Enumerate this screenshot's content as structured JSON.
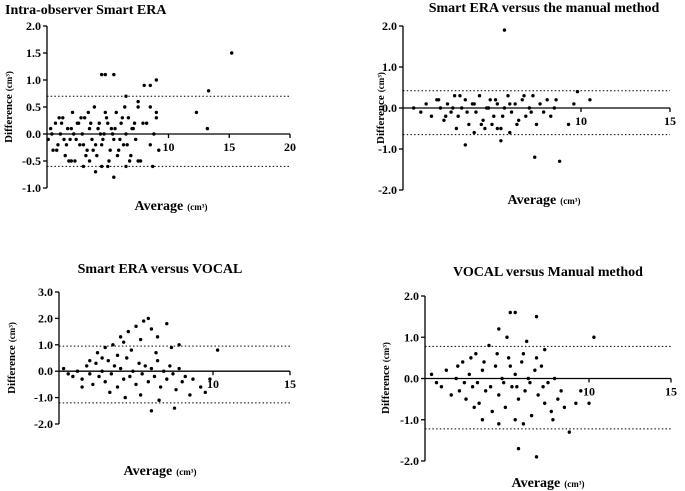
{
  "chart_data": [
    {
      "type": "scatter",
      "title": "Intra-observer  Smart ERA",
      "xlabel": "Average",
      "xlabel_unit": "(cm³)",
      "ylabel": "Difference",
      "ylabel_unit": "(cm³)",
      "xlim": [
        0,
        20
      ],
      "ylim": [
        -1.0,
        2.0
      ],
      "xticks": [
        {
          "v": 10,
          "t": "10"
        },
        {
          "v": 15,
          "t": "15"
        },
        {
          "v": 20,
          "t": "20"
        }
      ],
      "yticks": [
        {
          "v": 2.0,
          "t": "2.0"
        },
        {
          "v": 1.5,
          "t": "1.5"
        },
        {
          "v": 1.0,
          "t": "1.0"
        },
        {
          "v": 0.5,
          "t": "0.5"
        },
        {
          "v": 0.0,
          "t": "0.0"
        },
        {
          "v": -0.5,
          "t": "-0.5"
        },
        {
          "v": -1.0,
          "t": "-1.0"
        }
      ],
      "limits": [
        0.7,
        -0.6
      ],
      "points": [
        [
          0.1,
          -0.1
        ],
        [
          0.3,
          0.1
        ],
        [
          0.5,
          -0.3
        ],
        [
          0.7,
          0.2
        ],
        [
          0.9,
          -0.2
        ],
        [
          1.1,
          0.0
        ],
        [
          1.3,
          0.3
        ],
        [
          1.5,
          -0.4
        ],
        [
          1.7,
          0.1
        ],
        [
          1.9,
          -0.1
        ],
        [
          2.1,
          0.4
        ],
        [
          2.3,
          -0.5
        ],
        [
          2.5,
          0.2
        ],
        [
          2.7,
          -0.2
        ],
        [
          2.9,
          0.0
        ],
        [
          3.1,
          0.3
        ],
        [
          3.3,
          -0.3
        ],
        [
          3.5,
          0.1
        ],
        [
          3.7,
          -0.1
        ],
        [
          3.9,
          0.5
        ],
        [
          4.1,
          -0.4
        ],
        [
          4.3,
          0.2
        ],
        [
          4.5,
          -0.2
        ],
        [
          4.7,
          0.0
        ],
        [
          4.9,
          0.3
        ],
        [
          5.1,
          -0.5
        ],
        [
          5.3,
          0.1
        ],
        [
          5.5,
          -0.1
        ],
        [
          5.7,
          0.4
        ],
        [
          5.9,
          -0.3
        ],
        [
          6.1,
          0.2
        ],
        [
          6.3,
          -0.2
        ],
        [
          6.5,
          0.0
        ],
        [
          6.7,
          0.3
        ],
        [
          6.9,
          -0.4
        ],
        [
          7.1,
          0.1
        ],
        [
          7.3,
          -0.1
        ],
        [
          7.5,
          0.5
        ],
        [
          7.7,
          -0.5
        ],
        [
          7.9,
          0.2
        ],
        [
          0.4,
          0.0
        ],
        [
          0.8,
          -0.3
        ],
        [
          1.2,
          0.2
        ],
        [
          1.6,
          -0.2
        ],
        [
          2.0,
          0.1
        ],
        [
          2.4,
          -0.1
        ],
        [
          2.8,
          0.3
        ],
        [
          3.2,
          -0.4
        ],
        [
          3.6,
          0.2
        ],
        [
          4.0,
          -0.2
        ],
        [
          4.4,
          0.0
        ],
        [
          4.8,
          0.4
        ],
        [
          5.2,
          -0.3
        ],
        [
          5.6,
          0.1
        ],
        [
          6.0,
          -0.1
        ],
        [
          6.4,
          0.5
        ],
        [
          6.8,
          -0.5
        ],
        [
          7.2,
          0.2
        ],
        [
          1.0,
          0.3
        ],
        [
          1.4,
          -0.1
        ],
        [
          1.8,
          -0.5
        ],
        [
          2.2,
          0.0
        ],
        [
          2.6,
          0.2
        ],
        [
          3.0,
          -0.2
        ],
        [
          3.4,
          0.4
        ],
        [
          3.8,
          -0.3
        ],
        [
          4.2,
          0.1
        ],
        [
          4.6,
          -0.1
        ],
        [
          5.0,
          0.2
        ],
        [
          5.4,
          0.0
        ],
        [
          5.8,
          -0.4
        ],
        [
          6.2,
          0.3
        ],
        [
          6.6,
          -0.2
        ],
        [
          7.0,
          0.1
        ],
        [
          3.0,
          -0.6
        ],
        [
          4.0,
          -0.7
        ],
        [
          5.0,
          -0.6
        ],
        [
          5.5,
          -0.8
        ],
        [
          6.5,
          -0.6
        ],
        [
          7.5,
          -0.5
        ],
        [
          2.0,
          -0.5
        ],
        [
          3.5,
          -0.5
        ],
        [
          4.5,
          -0.6
        ],
        [
          4.5,
          1.1
        ],
        [
          4.8,
          1.1
        ],
        [
          5.5,
          1.1
        ],
        [
          6.5,
          0.7
        ],
        [
          7.5,
          0.6
        ],
        [
          8.0,
          0.9
        ],
        [
          8.5,
          0.9
        ],
        [
          9.0,
          1.0
        ],
        [
          8.5,
          0.5
        ],
        [
          9.0,
          0.3
        ],
        [
          8.2,
          0.2
        ],
        [
          8.8,
          0.0
        ],
        [
          8.5,
          -0.2
        ],
        [
          9.2,
          -0.3
        ],
        [
          8.7,
          -0.6
        ],
        [
          12.3,
          0.4
        ],
        [
          13.3,
          0.8
        ],
        [
          13.2,
          0.1
        ],
        [
          15.2,
          1.5
        ],
        [
          9.0,
          0.4
        ]
      ]
    },
    {
      "type": "scatter",
      "title": "Smart ERA versus the manual method",
      "xlabel": "Average",
      "xlabel_unit": "(cm³)",
      "ylabel": "Difference",
      "ylabel_unit": "(cm³)",
      "xlim": [
        0,
        15
      ],
      "ylim": [
        -2.0,
        2.0
      ],
      "xticks": [
        {
          "v": 10,
          "t": "10"
        },
        {
          "v": 15,
          "t": "15"
        }
      ],
      "yticks": [
        {
          "v": 2.0,
          "t": "2.0"
        },
        {
          "v": 1.0,
          "t": "1.0"
        },
        {
          "v": 0.0,
          "t": "0.0"
        },
        {
          "v": -1.0,
          "t": "-1.0"
        },
        {
          "v": -2.0,
          "t": "-2.0"
        }
      ],
      "limits": [
        0.42,
        -0.65
      ],
      "points": [
        [
          0.6,
          0.0
        ],
        [
          1.0,
          -0.1
        ],
        [
          1.3,
          0.1
        ],
        [
          1.6,
          -0.2
        ],
        [
          1.9,
          0.2
        ],
        [
          2.1,
          0.0
        ],
        [
          2.3,
          -0.3
        ],
        [
          2.5,
          0.1
        ],
        [
          2.7,
          -0.1
        ],
        [
          2.9,
          0.3
        ],
        [
          3.1,
          -0.2
        ],
        [
          3.3,
          0.0
        ],
        [
          3.5,
          0.2
        ],
        [
          3.7,
          -0.4
        ],
        [
          3.9,
          0.1
        ],
        [
          4.1,
          -0.1
        ],
        [
          4.3,
          0.3
        ],
        [
          4.5,
          -0.3
        ],
        [
          4.7,
          0.0
        ],
        [
          4.9,
          0.2
        ],
        [
          5.1,
          -0.2
        ],
        [
          5.3,
          0.1
        ],
        [
          5.5,
          -0.5
        ],
        [
          5.7,
          0.0
        ],
        [
          5.9,
          0.3
        ],
        [
          6.1,
          -0.1
        ],
        [
          6.3,
          0.1
        ],
        [
          6.5,
          -0.3
        ],
        [
          6.7,
          0.2
        ],
        [
          6.9,
          -0.2
        ],
        [
          7.1,
          0.0
        ],
        [
          7.3,
          0.3
        ],
        [
          7.5,
          -0.4
        ],
        [
          7.7,
          0.1
        ],
        [
          7.9,
          -0.1
        ],
        [
          8.1,
          0.2
        ],
        [
          8.3,
          -0.2
        ],
        [
          8.5,
          0.0
        ],
        [
          2.0,
          0.2
        ],
        [
          2.4,
          -0.2
        ],
        [
          2.8,
          0.0
        ],
        [
          3.2,
          0.3
        ],
        [
          3.6,
          -0.1
        ],
        [
          4.0,
          0.1
        ],
        [
          4.4,
          -0.4
        ],
        [
          4.8,
          0.0
        ],
        [
          5.2,
          0.2
        ],
        [
          5.6,
          -0.2
        ],
        [
          6.0,
          0.1
        ],
        [
          6.4,
          -0.4
        ],
        [
          6.8,
          0.3
        ],
        [
          7.2,
          -0.1
        ],
        [
          3.0,
          -0.5
        ],
        [
          4.0,
          -0.6
        ],
        [
          5.0,
          -0.4
        ],
        [
          6.0,
          -0.6
        ],
        [
          3.5,
          -0.9
        ],
        [
          5.5,
          -0.8
        ],
        [
          4.6,
          -0.5
        ],
        [
          5.3,
          -0.5
        ],
        [
          7.4,
          -1.2
        ],
        [
          8.8,
          -1.3
        ],
        [
          5.7,
          1.9
        ],
        [
          8.6,
          0.2
        ],
        [
          9.3,
          -0.4
        ],
        [
          9.6,
          0.1
        ],
        [
          9.8,
          0.4
        ],
        [
          10.5,
          0.2
        ]
      ]
    },
    {
      "type": "scatter",
      "title": "Smart ERA versus VOCAL",
      "xlabel": "Average",
      "xlabel_unit": "(cm³)",
      "ylabel": "Difference",
      "ylabel_unit": "(cm³)",
      "xlim": [
        0,
        15
      ],
      "ylim": [
        -2.0,
        3.0
      ],
      "xticks": [
        {
          "v": 10,
          "t": "10"
        },
        {
          "v": 15,
          "t": "15"
        }
      ],
      "yticks": [
        {
          "v": 3.0,
          "t": "3.0"
        },
        {
          "v": 2.0,
          "t": "2.0"
        },
        {
          "v": 1.0,
          "t": "1.0"
        },
        {
          "v": 0.0,
          "t": "0.0"
        },
        {
          "v": -1.0,
          "t": "-1.0"
        },
        {
          "v": -2.0,
          "t": "-2.0"
        }
      ],
      "limits": [
        0.95,
        -1.2
      ],
      "points": [
        [
          0.3,
          0.1
        ],
        [
          0.6,
          -0.1
        ],
        [
          0.9,
          -0.2
        ],
        [
          1.2,
          0.0
        ],
        [
          1.5,
          -0.3
        ],
        [
          1.8,
          0.2
        ],
        [
          2.0,
          -0.1
        ],
        [
          2.2,
          -0.5
        ],
        [
          2.4,
          0.3
        ],
        [
          2.6,
          -0.2
        ],
        [
          2.8,
          0.0
        ],
        [
          3.0,
          -0.4
        ],
        [
          3.2,
          0.4
        ],
        [
          3.4,
          -0.1
        ],
        [
          3.6,
          0.2
        ],
        [
          3.8,
          -0.6
        ],
        [
          4.0,
          0.1
        ],
        [
          4.2,
          -0.3
        ],
        [
          4.4,
          0.5
        ],
        [
          4.6,
          -0.2
        ],
        [
          4.8,
          0.0
        ],
        [
          5.0,
          -0.5
        ],
        [
          5.2,
          0.3
        ],
        [
          5.4,
          -0.1
        ],
        [
          5.6,
          0.2
        ],
        [
          5.8,
          -0.4
        ],
        [
          6.0,
          0.1
        ],
        [
          6.2,
          -0.2
        ],
        [
          6.4,
          0.4
        ],
        [
          6.6,
          -0.6
        ],
        [
          6.8,
          0.0
        ],
        [
          7.0,
          -0.3
        ],
        [
          7.2,
          0.2
        ],
        [
          7.4,
          -0.1
        ],
        [
          7.6,
          -0.7
        ],
        [
          7.8,
          0.1
        ],
        [
          8.0,
          -0.4
        ],
        [
          8.2,
          -0.2
        ],
        [
          2.5,
          0.7
        ],
        [
          3.0,
          0.9
        ],
        [
          3.5,
          1.0
        ],
        [
          4.0,
          1.3
        ],
        [
          4.5,
          1.5
        ],
        [
          5.0,
          1.7
        ],
        [
          5.5,
          1.9
        ],
        [
          5.8,
          2.0
        ],
        [
          6.0,
          1.6
        ],
        [
          4.2,
          1.1
        ],
        [
          5.3,
          1.2
        ],
        [
          6.4,
          1.3
        ],
        [
          7.0,
          1.8
        ],
        [
          2.8,
          0.5
        ],
        [
          4.7,
          0.8
        ],
        [
          6.3,
          0.7
        ],
        [
          7.3,
          0.9
        ],
        [
          7.8,
          1.0
        ],
        [
          3.3,
          -0.8
        ],
        [
          4.3,
          -1.0
        ],
        [
          5.3,
          -0.9
        ],
        [
          6.0,
          -1.5
        ],
        [
          6.5,
          -1.1
        ],
        [
          7.5,
          -1.4
        ],
        [
          8.5,
          -0.9
        ],
        [
          9.5,
          -0.8
        ],
        [
          9.8,
          -0.3
        ],
        [
          10.3,
          0.8
        ],
        [
          1.5,
          -0.6
        ],
        [
          2.0,
          0.4
        ],
        [
          3.8,
          0.6
        ],
        [
          8.7,
          -0.3
        ],
        [
          9.2,
          -0.6
        ]
      ]
    },
    {
      "type": "scatter",
      "title": "VOCAL versus Manual method",
      "xlabel": "Average",
      "xlabel_unit": "(cm³)",
      "ylabel": "Difference",
      "ylabel_unit": "(cm³)",
      "xlim": [
        0,
        15
      ],
      "ylim": [
        -2.0,
        2.0
      ],
      "xticks": [
        {
          "v": 10,
          "t": "10"
        },
        {
          "v": 15,
          "t": "15"
        }
      ],
      "yticks": [
        {
          "v": 2.0,
          "t": "2.0"
        },
        {
          "v": 1.0,
          "t": "1.0"
        },
        {
          "v": 0.0,
          "t": "0.0"
        },
        {
          "v": -1.0,
          "t": "-1.0"
        },
        {
          "v": -2.0,
          "t": "-2.0"
        }
      ],
      "limits": [
        0.78,
        -1.22
      ],
      "points": [
        [
          0.4,
          0.1
        ],
        [
          0.7,
          -0.1
        ],
        [
          1.0,
          -0.2
        ],
        [
          1.3,
          0.2
        ],
        [
          1.6,
          -0.4
        ],
        [
          1.9,
          0.0
        ],
        [
          2.1,
          -0.3
        ],
        [
          2.3,
          0.4
        ],
        [
          2.5,
          -0.5
        ],
        [
          2.7,
          0.1
        ],
        [
          2.9,
          -0.2
        ],
        [
          3.1,
          0.6
        ],
        [
          3.3,
          -0.6
        ],
        [
          3.5,
          0.2
        ],
        [
          3.7,
          -0.3
        ],
        [
          3.9,
          0.8
        ],
        [
          4.1,
          -0.8
        ],
        [
          4.3,
          0.3
        ],
        [
          4.5,
          -0.4
        ],
        [
          4.7,
          0.0
        ],
        [
          4.9,
          -0.7
        ],
        [
          5.1,
          0.5
        ],
        [
          5.3,
          -0.2
        ],
        [
          5.5,
          0.1
        ],
        [
          5.7,
          -0.5
        ],
        [
          5.9,
          0.4
        ],
        [
          6.1,
          -0.3
        ],
        [
          6.3,
          0.0
        ],
        [
          6.5,
          -0.9
        ],
        [
          6.7,
          0.2
        ],
        [
          6.9,
          -0.4
        ],
        [
          7.1,
          0.3
        ],
        [
          7.3,
          -0.6
        ],
        [
          7.5,
          -0.1
        ],
        [
          7.7,
          -0.8
        ],
        [
          7.9,
          0.0
        ],
        [
          8.1,
          -0.5
        ],
        [
          8.3,
          -0.3
        ],
        [
          2.0,
          0.3
        ],
        [
          2.4,
          -0.1
        ],
        [
          2.8,
          0.5
        ],
        [
          3.2,
          -0.1
        ],
        [
          3.6,
          0.4
        ],
        [
          4.0,
          -0.2
        ],
        [
          4.4,
          0.6
        ],
        [
          4.8,
          -0.1
        ],
        [
          5.2,
          0.3
        ],
        [
          5.6,
          -0.2
        ],
        [
          6.0,
          0.6
        ],
        [
          6.4,
          -0.1
        ],
        [
          6.8,
          0.5
        ],
        [
          7.2,
          -0.2
        ],
        [
          4.5,
          1.2
        ],
        [
          5.2,
          1.6
        ],
        [
          5.5,
          1.6
        ],
        [
          6.2,
          0.9
        ],
        [
          6.8,
          1.5
        ],
        [
          5.0,
          1.0
        ],
        [
          7.3,
          0.7
        ],
        [
          3.5,
          -1.0
        ],
        [
          4.5,
          -1.1
        ],
        [
          5.5,
          -1.0
        ],
        [
          6.0,
          -1.1
        ],
        [
          5.7,
          -1.7
        ],
        [
          6.8,
          -1.9
        ],
        [
          7.8,
          -1.0
        ],
        [
          8.8,
          -1.3
        ],
        [
          9.2,
          -0.6
        ],
        [
          10.0,
          -0.6
        ],
        [
          9.5,
          -0.3
        ],
        [
          10.3,
          1.0
        ],
        [
          3.0,
          -0.7
        ],
        [
          8.5,
          -0.7
        ]
      ]
    }
  ]
}
